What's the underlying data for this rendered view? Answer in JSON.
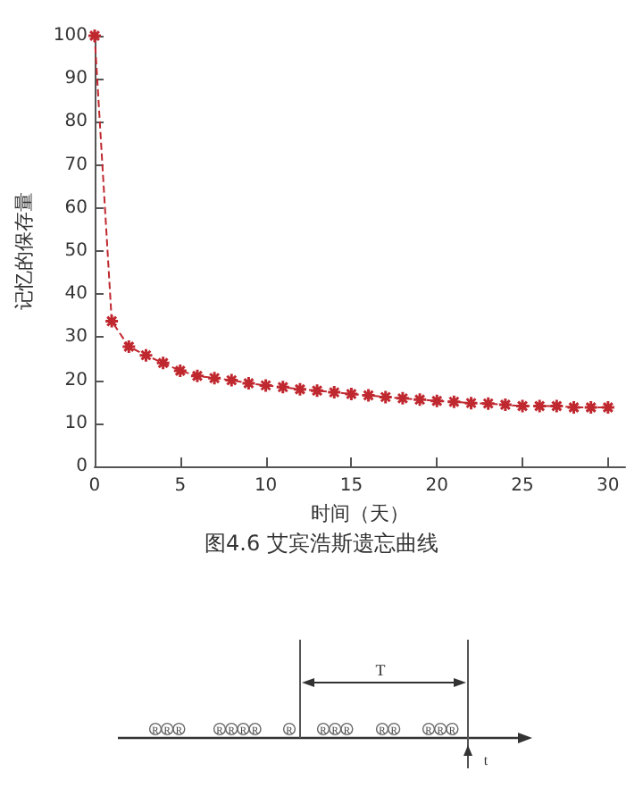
{
  "chart_data": {
    "type": "line",
    "xlabel": "时间（天）",
    "ylabel": "记忆的保存量",
    "x": [
      0,
      1,
      2,
      3,
      4,
      5,
      6,
      7,
      8,
      9,
      10,
      11,
      12,
      13,
      14,
      15,
      16,
      17,
      18,
      19,
      20,
      21,
      22,
      23,
      24,
      25,
      26,
      27,
      28,
      29,
      30
    ],
    "series": [
      {
        "color": "#c0282f",
        "values": [
          100,
          33.7,
          27.8,
          25.8,
          24,
          22.2,
          21,
          20.5,
          20,
          19.3,
          18.8,
          18.4,
          17.9,
          17.6,
          17.2,
          16.8,
          16.5,
          16.1,
          15.8,
          15.5,
          15.2,
          15,
          14.7,
          14.6,
          14.3,
          14,
          14,
          14,
          13.7,
          13.7,
          13.7
        ]
      }
    ],
    "xlim": [
      0,
      31
    ],
    "xticks": [
      0,
      5,
      10,
      15,
      20,
      25,
      30
    ],
    "ylim": [
      0,
      100
    ],
    "yticks": [
      0,
      10,
      20,
      30,
      40,
      50,
      60,
      70,
      80,
      90,
      100
    ],
    "marker": "cross",
    "line_style": "dashed",
    "annotations": [
      "图4.6 艾宾浩斯遗忘曲线",
      "T",
      "t",
      "R"
    ]
  }
}
